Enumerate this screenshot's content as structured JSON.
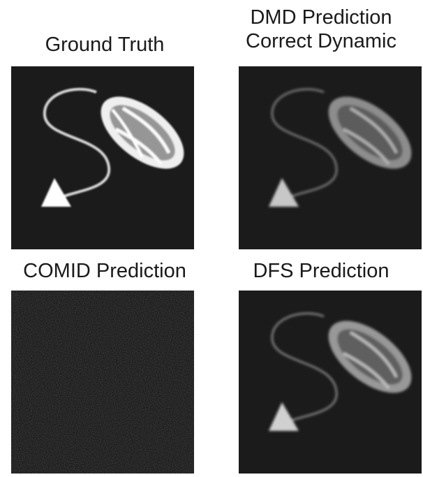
{
  "panels": [
    {
      "title": "Ground Truth",
      "quality": "clean"
    },
    {
      "title": "DMD Prediction\nCorrect Dynamic",
      "quality": "soft"
    },
    {
      "title": "COMID Prediction",
      "quality": "noise"
    },
    {
      "title": "DFS Prediction",
      "quality": "soft"
    }
  ],
  "colors": {
    "background": "#1b1b1b",
    "foreground": "#ffffff"
  }
}
